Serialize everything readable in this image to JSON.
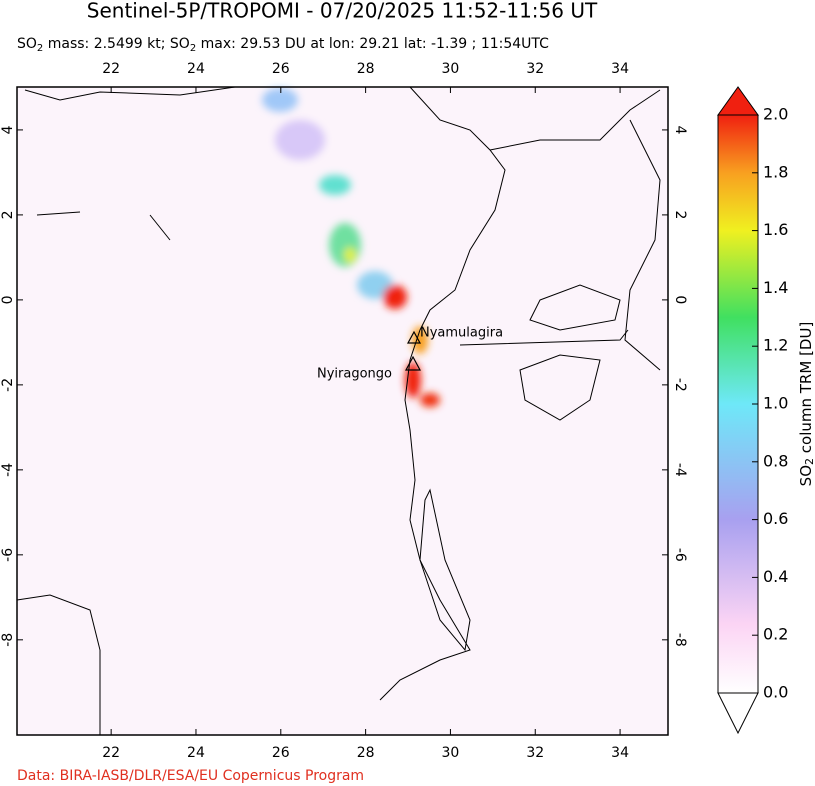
{
  "header": {
    "title": "Sentinel-5P/TROPOMI - 07/20/2025 11:52-11:56 UT",
    "subtitle": [
      "SO",
      "2",
      " mass: 2.5499 kt; SO",
      "2",
      " max: 29.53 DU at lon: 29.21 lat: -1.39 ; 11:54UTC"
    ]
  },
  "map": {
    "lon_range": [
      19.78,
      35.13
    ],
    "lat_range": [
      -10.24,
      5.01
    ],
    "lon_ticks": [
      22,
      24,
      26,
      28,
      30,
      32,
      34
    ],
    "lat_ticks": [
      4,
      2,
      0,
      -2,
      -4,
      -6,
      -8
    ],
    "volcanoes": [
      "Nyamulagira",
      "Nyiragongo"
    ]
  },
  "colorbar": {
    "range": [
      0,
      2
    ],
    "ticks": [
      {
        "value": 0,
        "label": "0.0"
      },
      {
        "value": 0.2,
        "label": "0.2"
      },
      {
        "value": 0.4,
        "label": "0.4"
      },
      {
        "value": 0.6,
        "label": "0.6"
      },
      {
        "value": 0.8,
        "label": "0.8"
      },
      {
        "value": 1.0,
        "label": "1.0"
      },
      {
        "value": 1.2,
        "label": "1.2"
      },
      {
        "value": 1.4,
        "label": "1.4"
      },
      {
        "value": 1.6,
        "label": "1.6"
      },
      {
        "value": 1.8,
        "label": "1.8"
      },
      {
        "value": 2.0,
        "label": "2.0"
      }
    ],
    "label": [
      "SO",
      "2",
      " column TRM [DU]"
    ]
  },
  "footer": "Data: BIRA-IASB/DLR/ESA/EU Copernicus Program"
}
